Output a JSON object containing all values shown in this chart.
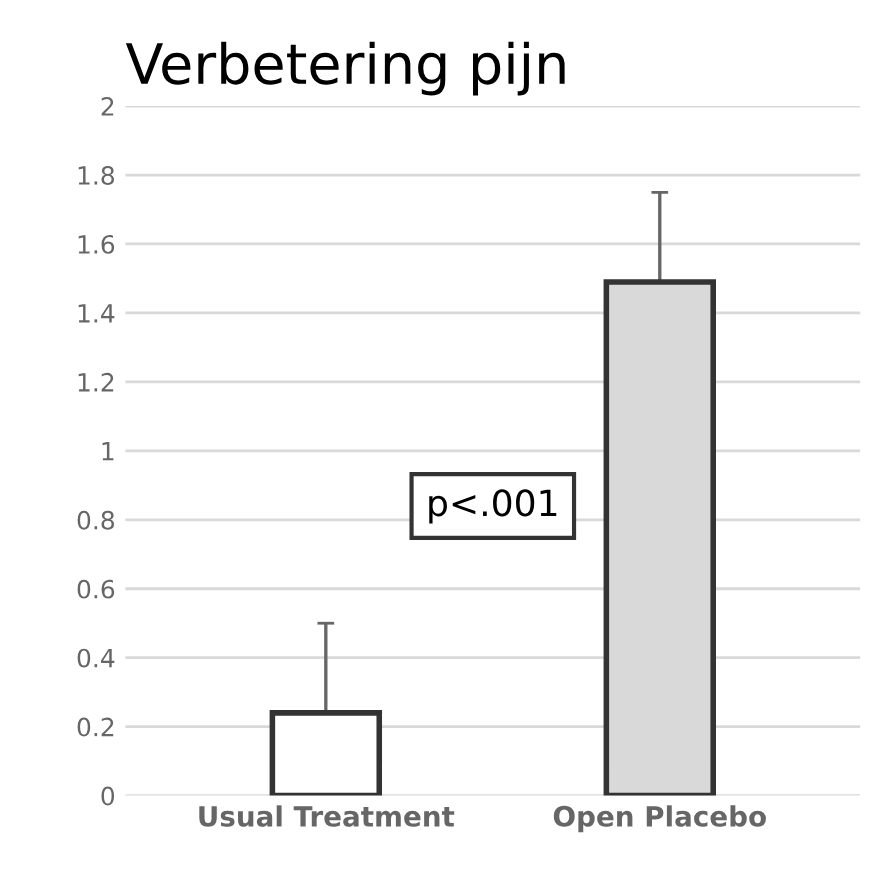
{
  "chart_data": {
    "type": "bar",
    "title": "Verbetering pijn",
    "categories": [
      "Usual Treatment",
      "Open Placebo"
    ],
    "values": [
      0.24,
      1.49
    ],
    "errors": [
      [
        0.24,
        0.5
      ],
      [
        1.49,
        1.75
      ]
    ],
    "colors": [
      "#ffffff",
      "#d9d9d9"
    ],
    "ylim": [
      0,
      2
    ],
    "yticks": [
      0,
      0.2,
      0.4,
      0.6,
      0.8,
      1,
      1.2,
      1.4,
      1.6,
      1.8,
      2
    ],
    "grid": "y",
    "annotations": [
      "p<.001"
    ]
  }
}
